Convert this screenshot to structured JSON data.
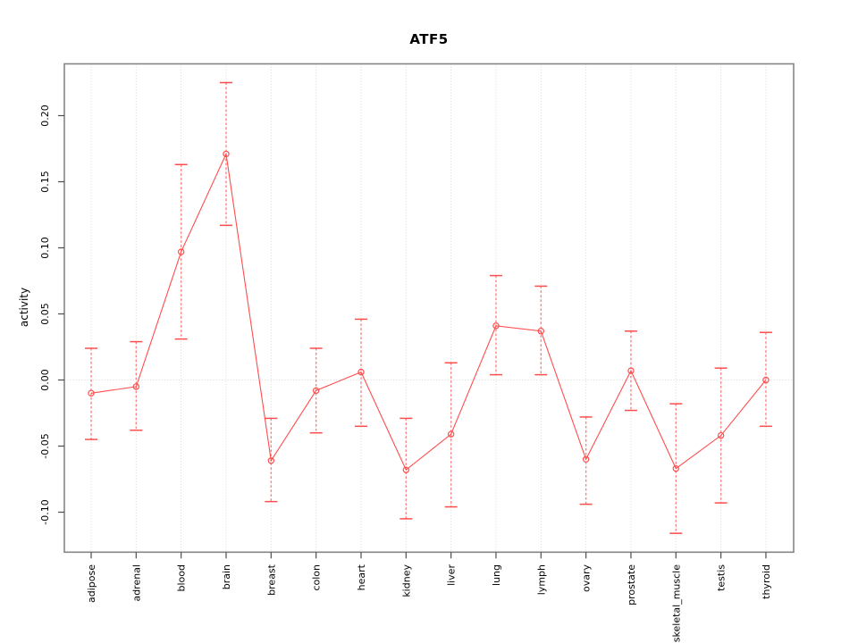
{
  "chart_data": {
    "type": "line",
    "title": "ATF5",
    "xlabel": "",
    "ylabel": "activity",
    "categories": [
      "adipose",
      "adrenal",
      "blood",
      "brain",
      "breast",
      "colon",
      "heart",
      "kidney",
      "liver",
      "lung",
      "lymph",
      "ovary",
      "prostate",
      "skeletal_muscle",
      "testis",
      "thyroid"
    ],
    "series": [
      {
        "name": "activity",
        "values": [
          -0.01,
          -0.005,
          0.097,
          0.171,
          -0.061,
          -0.008,
          0.006,
          -0.068,
          -0.041,
          0.041,
          0.037,
          -0.06,
          0.007,
          -0.067,
          -0.042,
          0.0
        ],
        "err_low": [
          -0.045,
          -0.038,
          0.031,
          0.117,
          -0.092,
          -0.04,
          -0.035,
          -0.105,
          -0.096,
          0.004,
          0.004,
          -0.094,
          -0.023,
          -0.116,
          -0.093,
          -0.035
        ],
        "err_high": [
          0.024,
          0.029,
          0.163,
          0.225,
          -0.029,
          0.024,
          0.046,
          -0.029,
          0.013,
          0.079,
          0.071,
          -0.028,
          0.037,
          -0.018,
          0.009,
          0.036
        ]
      }
    ],
    "y_ticks": [
      "0.20",
      "0.15",
      "0.10",
      "0.05",
      "0.00",
      "-0.05",
      "-0.10"
    ],
    "ylim": [
      -0.13,
      0.239
    ],
    "grid": {
      "vertical_per_category": true,
      "horizontal_zero_line": true,
      "style": "dotted"
    },
    "legend": "none",
    "marker": "open-circle",
    "colors": {
      "series": "#ff4d4d",
      "error_bar": "#ff8080",
      "grid": "#d8d8d8",
      "frame": "#858585",
      "tick": "#4d4d4d",
      "text": "#000000",
      "background": "#ffffff"
    }
  }
}
